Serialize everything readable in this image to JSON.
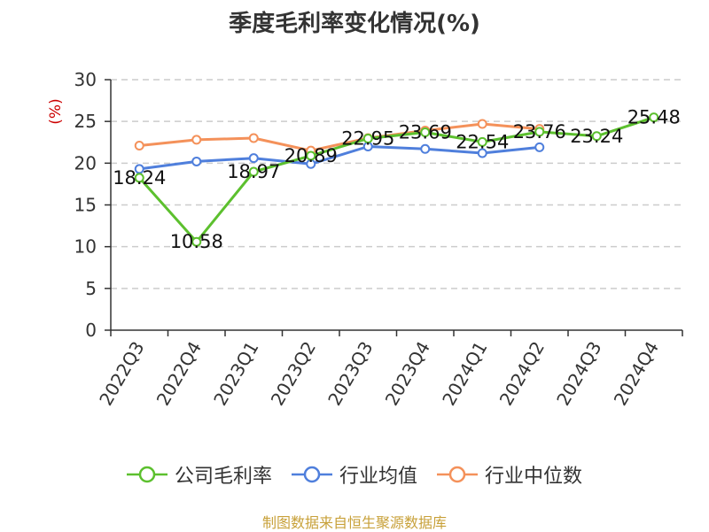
{
  "title": "季度毛利率变化情况(%)",
  "source": "制图数据来自恒生聚源数据库",
  "colors": {
    "company": "#5cc02e",
    "industry_avg": "#4f7fdc",
    "industry_median": "#f4915a",
    "unit": "#cc0000",
    "grid": "#cccccc",
    "axis": "#333333"
  },
  "chart_data": {
    "type": "line",
    "title": "季度毛利率变化情况(%)",
    "ylabel": "(%)",
    "xlabel": "",
    "ylim": [
      0,
      30
    ],
    "yticks": [
      0,
      5,
      10,
      15,
      20,
      25,
      30
    ],
    "grid": true,
    "legend_position": "bottom",
    "categories": [
      "2022Q3",
      "2022Q4",
      "2023Q1",
      "2023Q2",
      "2023Q3",
      "2023Q4",
      "2024Q1",
      "2024Q2",
      "2024Q3",
      "2024Q4"
    ],
    "series": [
      {
        "name": "公司毛利率",
        "color_key": "company",
        "values": [
          18.24,
          10.58,
          18.97,
          20.89,
          22.95,
          23.69,
          22.54,
          23.76,
          23.24,
          25.48
        ],
        "labels": [
          "18.24",
          "10.58",
          "18.97",
          "20.89",
          "22.95",
          "23.69",
          "22.54",
          "23.76",
          "23.24",
          "25.48"
        ]
      },
      {
        "name": "行业均值",
        "color_key": "industry_avg",
        "values": [
          19.3,
          20.2,
          20.6,
          19.9,
          22.0,
          21.7,
          21.2,
          21.9,
          null,
          null
        ]
      },
      {
        "name": "行业中位数",
        "color_key": "industry_median",
        "values": [
          22.1,
          22.8,
          23.0,
          21.5,
          23.0,
          23.9,
          24.7,
          24.1,
          null,
          null
        ]
      }
    ]
  }
}
